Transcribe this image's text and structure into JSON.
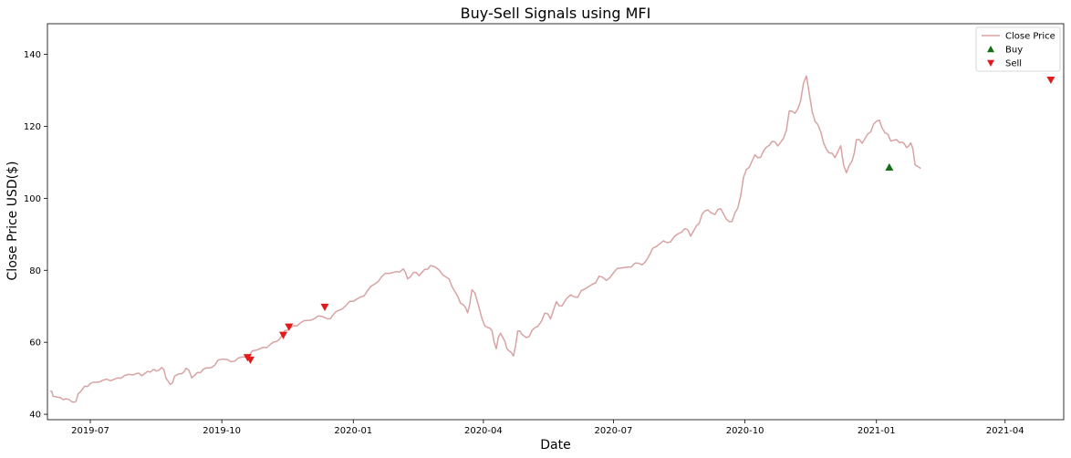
{
  "chart_data": {
    "type": "line",
    "title": "Buy-Sell Signals using MFI",
    "xlabel": "Date",
    "ylabel": "Close Price USD($)",
    "xlim": [
      "2019-06-01",
      "2021-05-12"
    ],
    "ylim": [
      38.5,
      148.5
    ],
    "x_ticks": [
      "2019-07",
      "2019-10",
      "2020-01",
      "2020-04",
      "2020-07",
      "2020-10",
      "2021-01",
      "2021-04"
    ],
    "y_ticks": [
      40,
      60,
      80,
      100,
      120,
      140
    ],
    "grid": false,
    "legend_position": "top-right",
    "series": [
      {
        "name": "Close Price",
        "kind": "line",
        "color": "#d8a3a3",
        "points": [
          [
            "2019-06-03",
            46.5
          ],
          [
            "2019-06-05",
            45.0
          ],
          [
            "2019-06-10",
            44.6
          ],
          [
            "2019-06-14",
            44.3
          ],
          [
            "2019-06-18",
            43.5
          ],
          [
            "2019-06-21",
            43.6
          ],
          [
            "2019-06-24",
            46.2
          ],
          [
            "2019-06-27",
            47.8
          ],
          [
            "2019-07-01",
            48.5
          ],
          [
            "2019-07-05",
            48.9
          ],
          [
            "2019-07-10",
            49.5
          ],
          [
            "2019-07-15",
            49.3
          ],
          [
            "2019-07-20",
            50.1
          ],
          [
            "2019-07-25",
            50.8
          ],
          [
            "2019-07-30",
            51.0
          ],
          [
            "2019-08-02",
            51.3
          ],
          [
            "2019-08-06",
            50.7
          ],
          [
            "2019-08-10",
            51.9
          ],
          [
            "2019-08-14",
            52.4
          ],
          [
            "2019-08-16",
            52.0
          ],
          [
            "2019-08-20",
            53.0
          ],
          [
            "2019-08-23",
            50.0
          ],
          [
            "2019-08-26",
            48.3
          ],
          [
            "2019-08-29",
            50.6
          ],
          [
            "2019-09-03",
            51.3
          ],
          [
            "2019-09-06",
            52.8
          ],
          [
            "2019-09-10",
            50.1
          ],
          [
            "2019-09-14",
            51.6
          ],
          [
            "2019-09-18",
            52.5
          ],
          [
            "2019-09-22",
            52.9
          ],
          [
            "2019-09-26",
            53.6
          ],
          [
            "2019-10-01",
            55.3
          ],
          [
            "2019-10-05",
            55.2
          ],
          [
            "2019-10-10",
            54.8
          ],
          [
            "2019-10-15",
            55.9
          ],
          [
            "2019-10-20",
            56.3
          ],
          [
            "2019-10-25",
            57.8
          ],
          [
            "2019-10-30",
            58.6
          ],
          [
            "2019-11-04",
            59.4
          ],
          [
            "2019-11-08",
            60.2
          ],
          [
            "2019-11-12",
            61.8
          ],
          [
            "2019-11-16",
            63.4
          ],
          [
            "2019-11-20",
            64.6
          ],
          [
            "2019-11-25",
            65.4
          ],
          [
            "2019-11-30",
            66.1
          ],
          [
            "2019-12-05",
            66.6
          ],
          [
            "2019-12-10",
            67.2
          ],
          [
            "2019-12-14",
            66.5
          ],
          [
            "2019-12-18",
            67.7
          ],
          [
            "2019-12-22",
            68.9
          ],
          [
            "2019-12-27",
            70.3
          ],
          [
            "2020-01-01",
            71.4
          ],
          [
            "2020-01-06",
            72.6
          ],
          [
            "2020-01-11",
            74.4
          ],
          [
            "2020-01-16",
            76.2
          ],
          [
            "2020-01-21",
            78.3
          ],
          [
            "2020-01-26",
            79.1
          ],
          [
            "2020-01-31",
            79.6
          ],
          [
            "2020-02-05",
            80.4
          ],
          [
            "2020-02-08",
            77.6
          ],
          [
            "2020-02-12",
            79.4
          ],
          [
            "2020-02-16",
            78.5
          ],
          [
            "2020-02-20",
            80.3
          ],
          [
            "2020-02-24",
            81.3
          ],
          [
            "2020-03-01",
            80.1
          ],
          [
            "2020-03-06",
            78.1
          ],
          [
            "2020-03-10",
            75.5
          ],
          [
            "2020-03-14",
            72.8
          ],
          [
            "2020-03-18",
            70.4
          ],
          [
            "2020-03-21",
            68.2
          ],
          [
            "2020-03-24",
            74.6
          ],
          [
            "2020-03-28",
            71.0
          ],
          [
            "2020-03-31",
            66.6
          ],
          [
            "2020-04-04",
            64.1
          ],
          [
            "2020-04-07",
            63.3
          ],
          [
            "2020-04-10",
            58.2
          ],
          [
            "2020-04-13",
            62.5
          ],
          [
            "2020-04-16",
            60.3
          ],
          [
            "2020-04-19",
            57.6
          ],
          [
            "2020-04-22",
            56.2
          ],
          [
            "2020-04-25",
            63.1
          ],
          [
            "2020-04-28",
            62.2
          ],
          [
            "2020-05-01",
            61.3
          ],
          [
            "2020-05-05",
            63.2
          ],
          [
            "2020-05-09",
            64.4
          ],
          [
            "2020-05-14",
            68.1
          ],
          [
            "2020-05-18",
            66.5
          ],
          [
            "2020-05-22",
            71.3
          ],
          [
            "2020-05-26",
            70.1
          ],
          [
            "2020-06-01",
            73.2
          ],
          [
            "2020-06-06",
            72.5
          ],
          [
            "2020-06-11",
            74.8
          ],
          [
            "2020-06-16",
            76.1
          ],
          [
            "2020-06-21",
            78.4
          ],
          [
            "2020-06-26",
            77.2
          ],
          [
            "2020-07-01",
            79.3
          ],
          [
            "2020-07-06",
            80.6
          ],
          [
            "2020-07-11",
            80.9
          ],
          [
            "2020-07-16",
            82.0
          ],
          [
            "2020-07-21",
            81.5
          ],
          [
            "2020-07-26",
            84.1
          ],
          [
            "2020-07-31",
            86.6
          ],
          [
            "2020-08-05",
            88.2
          ],
          [
            "2020-08-10",
            87.9
          ],
          [
            "2020-08-15",
            90.1
          ],
          [
            "2020-08-20",
            91.6
          ],
          [
            "2020-08-24",
            89.5
          ],
          [
            "2020-08-28",
            92.3
          ],
          [
            "2020-09-01",
            95.6
          ],
          [
            "2020-09-05",
            96.8
          ],
          [
            "2020-09-10",
            95.5
          ],
          [
            "2020-09-14",
            97.1
          ],
          [
            "2020-09-18",
            94.2
          ],
          [
            "2020-09-22",
            93.6
          ],
          [
            "2020-09-26",
            97.3
          ],
          [
            "2020-09-30",
            105.8
          ],
          [
            "2020-10-04",
            108.6
          ],
          [
            "2020-10-08",
            112.1
          ],
          [
            "2020-10-12",
            111.4
          ],
          [
            "2020-10-16",
            114.2
          ],
          [
            "2020-10-20",
            115.8
          ],
          [
            "2020-10-24",
            114.5
          ],
          [
            "2020-10-28",
            116.7
          ],
          [
            "2020-11-01",
            124.3
          ],
          [
            "2020-11-05",
            123.6
          ],
          [
            "2020-11-09",
            127.1
          ],
          [
            "2020-11-13",
            134.0
          ],
          [
            "2020-11-17",
            124.2
          ],
          [
            "2020-11-21",
            120.5
          ],
          [
            "2020-11-25",
            115.4
          ],
          [
            "2020-11-29",
            112.6
          ],
          [
            "2020-12-03",
            111.3
          ],
          [
            "2020-12-07",
            114.6
          ],
          [
            "2020-12-11",
            107.1
          ],
          [
            "2020-12-15",
            110.4
          ],
          [
            "2020-12-18",
            116.3
          ],
          [
            "2020-12-22",
            115.3
          ],
          [
            "2020-12-26",
            117.9
          ],
          [
            "2020-12-30",
            120.6
          ],
          [
            "2021-01-03",
            121.7
          ],
          [
            "2021-01-07",
            118.2
          ],
          [
            "2021-01-11",
            115.9
          ],
          [
            "2021-01-15",
            116.3
          ],
          [
            "2021-01-19",
            115.6
          ],
          [
            "2021-01-22",
            114.1
          ],
          [
            "2021-01-25",
            115.4
          ],
          [
            "2021-01-28",
            109.3
          ],
          [
            "2021-02-01",
            108.3
          ]
        ]
      },
      {
        "name": "Buy",
        "kind": "marker",
        "marker": "triangle-up",
        "color": "#157015",
        "points": [
          [
            "2021-01-10",
            108.6
          ]
        ]
      },
      {
        "name": "Sell",
        "kind": "marker",
        "marker": "triangle-down",
        "color": "#e31a1c",
        "points": [
          [
            "2019-10-19",
            55.8
          ],
          [
            "2019-10-21",
            55.1
          ],
          [
            "2019-11-13",
            62.0
          ],
          [
            "2019-11-17",
            64.3
          ],
          [
            "2019-12-12",
            69.8
          ],
          [
            "2021-05-03",
            132.9
          ]
        ]
      }
    ]
  }
}
